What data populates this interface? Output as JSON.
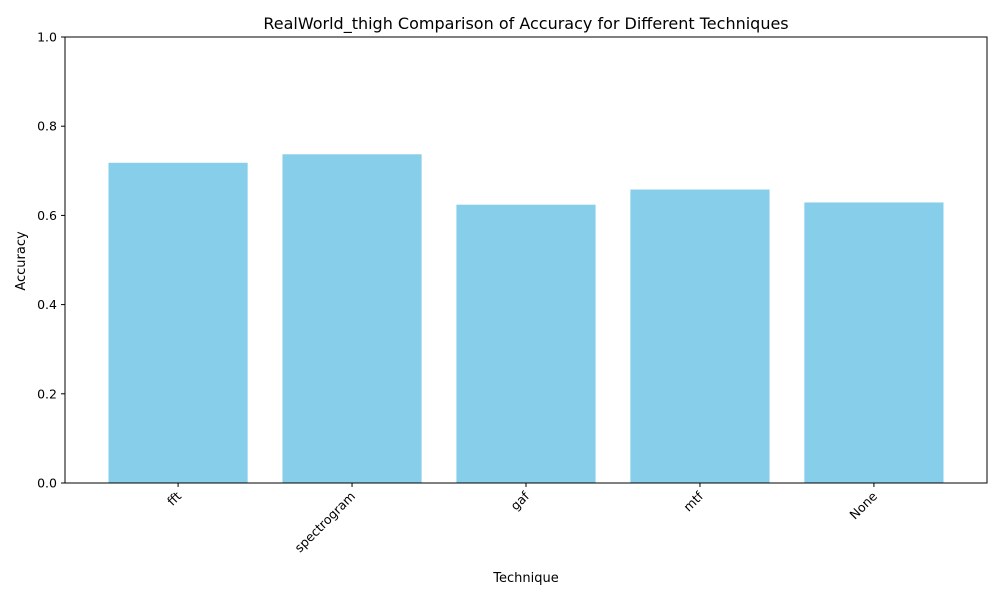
{
  "chart_data": {
    "type": "bar",
    "title": "RealWorld_thigh Comparison of Accuracy for Different Techniques",
    "xlabel": "Technique",
    "ylabel": "Accuracy",
    "categories": [
      "fft",
      "spectrogram",
      "gaf",
      "mtf",
      "None"
    ],
    "values": [
      0.718,
      0.737,
      0.624,
      0.658,
      0.629
    ],
    "ylim": [
      0,
      1
    ],
    "yticks": [
      "0.0",
      "0.2",
      "0.4",
      "0.6",
      "0.8",
      "1.0"
    ],
    "grid": false,
    "legend": "none",
    "bar_color": "#87ceeb"
  }
}
